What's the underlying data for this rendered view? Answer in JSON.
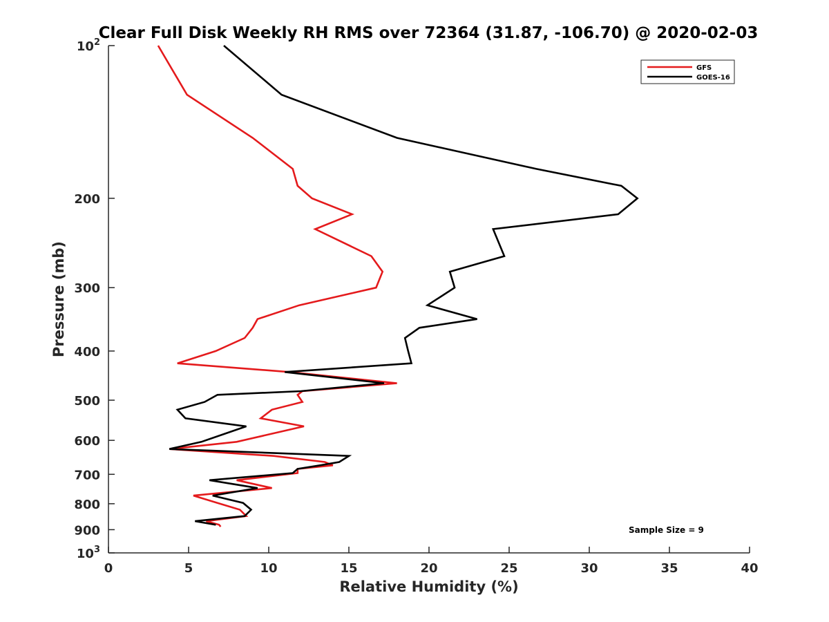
{
  "chart_data": {
    "type": "line",
    "title": "Clear Full Disk Weekly RH RMS over 72364 (31.87, -106.70) @ 2020-02-03",
    "xlabel": "Relative Humidity (%)",
    "ylabel": "Pressure (mb)",
    "xlim": [
      0,
      40
    ],
    "ylim": [
      100,
      1000
    ],
    "y_scale": "log",
    "y_reversed": true,
    "x_ticks": [
      "0",
      "5",
      "10",
      "15",
      "20",
      "25",
      "30",
      "35",
      "40"
    ],
    "y_ticks": [
      {
        "value": 100,
        "base": "10",
        "exp": "2"
      },
      {
        "value": 200,
        "label": "200"
      },
      {
        "value": 300,
        "label": "300"
      },
      {
        "value": 400,
        "label": "400"
      },
      {
        "value": 500,
        "label": "500"
      },
      {
        "value": 600,
        "label": "600"
      },
      {
        "value": 700,
        "label": "700"
      },
      {
        "value": 800,
        "label": "800"
      },
      {
        "value": 900,
        "label": "900"
      },
      {
        "value": 1000,
        "base": "10",
        "exp": "3"
      }
    ],
    "grid": false,
    "legend_position": "top-right",
    "annotation": "Sample Size = 9",
    "series": [
      {
        "name": "GFS",
        "color": "#e41a1c",
        "points": [
          [
            3.1,
            100
          ],
          [
            4.9,
            125
          ],
          [
            9.0,
            152
          ],
          [
            11.5,
            175
          ],
          [
            11.8,
            189
          ],
          [
            12.7,
            200
          ],
          [
            15.2,
            215
          ],
          [
            12.9,
            230
          ],
          [
            16.4,
            260
          ],
          [
            17.1,
            279
          ],
          [
            16.7,
            300
          ],
          [
            11.9,
            325
          ],
          [
            9.3,
            346
          ],
          [
            9.0,
            360
          ],
          [
            8.5,
            377
          ],
          [
            6.7,
            400
          ],
          [
            4.3,
            423
          ],
          [
            11.3,
            440
          ],
          [
            18.0,
            463
          ],
          [
            12.1,
            480
          ],
          [
            11.8,
            488
          ],
          [
            12.1,
            504
          ],
          [
            10.2,
            522
          ],
          [
            9.5,
            543
          ],
          [
            12.2,
            563
          ],
          [
            8.0,
            604
          ],
          [
            3.8,
            624
          ],
          [
            10.3,
            644
          ],
          [
            13.5,
            662
          ],
          [
            14.0,
            672
          ],
          [
            11.8,
            683
          ],
          [
            11.8,
            696
          ],
          [
            8.0,
            719
          ],
          [
            10.2,
            745
          ],
          [
            5.3,
            771
          ],
          [
            6.8,
            797
          ],
          [
            8.2,
            822
          ],
          [
            8.6,
            846
          ],
          [
            6.1,
            866
          ],
          [
            6.9,
            880
          ],
          [
            7.0,
            888
          ]
        ]
      },
      {
        "name": "GOES-16",
        "color": "#000000",
        "points": [
          [
            7.2,
            100
          ],
          [
            10.8,
            125
          ],
          [
            18.0,
            152
          ],
          [
            26.7,
            175
          ],
          [
            32.0,
            189
          ],
          [
            33.0,
            200
          ],
          [
            31.8,
            215
          ],
          [
            24.0,
            230
          ],
          [
            24.7,
            260
          ],
          [
            21.3,
            279
          ],
          [
            21.6,
            300
          ],
          [
            19.9,
            325
          ],
          [
            23.0,
            346
          ],
          [
            19.4,
            360
          ],
          [
            18.5,
            377
          ],
          [
            18.7,
            400
          ],
          [
            18.9,
            423
          ],
          [
            11.0,
            440
          ],
          [
            17.2,
            463
          ],
          [
            12.0,
            480
          ],
          [
            6.8,
            488
          ],
          [
            6.0,
            504
          ],
          [
            4.3,
            522
          ],
          [
            4.8,
            543
          ],
          [
            8.6,
            563
          ],
          [
            5.8,
            604
          ],
          [
            3.8,
            624
          ],
          [
            15.0,
            644
          ],
          [
            14.4,
            662
          ],
          [
            13.2,
            672
          ],
          [
            11.8,
            683
          ],
          [
            11.5,
            696
          ],
          [
            6.3,
            719
          ],
          [
            9.3,
            745
          ],
          [
            6.5,
            771
          ],
          [
            8.4,
            797
          ],
          [
            8.9,
            822
          ],
          [
            8.5,
            846
          ],
          [
            5.4,
            866
          ],
          [
            6.7,
            880
          ]
        ]
      }
    ]
  }
}
